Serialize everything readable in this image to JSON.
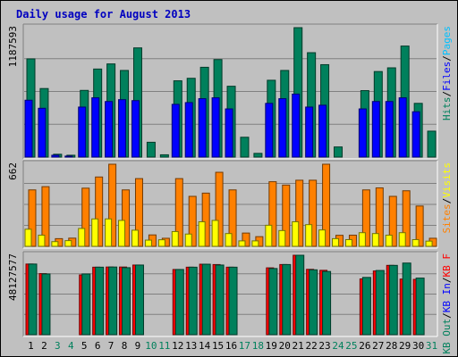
{
  "chart_data": {
    "type": "bar",
    "title": "Daily usage for August 2013",
    "categories": [
      "1",
      "2",
      "3",
      "4",
      "5",
      "6",
      "7",
      "8",
      "9",
      "10",
      "11",
      "12",
      "13",
      "14",
      "15",
      "16",
      "17",
      "18",
      "19",
      "20",
      "21",
      "22",
      "23",
      "24",
      "25",
      "26",
      "27",
      "28",
      "29",
      "30",
      "31"
    ],
    "weekend_days": [
      "3",
      "4",
      "10",
      "11",
      "17",
      "18",
      "24",
      "25",
      "31"
    ],
    "panels": [
      {
        "name": "hits-files-pages",
        "max_label": "1187593",
        "ymax": 1187593,
        "legend": [
          {
            "text": "Pages",
            "color": "#00c0ff"
          },
          {
            "text": "/",
            "color": "#000000"
          },
          {
            "text": "Files",
            "color": "#0000ff"
          },
          {
            "text": "/",
            "color": "#000000"
          },
          {
            "text": "Hits",
            "color": "#00805c"
          }
        ],
        "series": [
          {
            "name": "Hits",
            "color": "#00805c",
            "values": [
              901000,
              629000,
              26000,
              17000,
              612000,
              808000,
              855000,
              795000,
              1002000,
              136000,
              21000,
              700000,
              723000,
              824000,
              895000,
              650000,
              182000,
              34000,
              705000,
              795000,
              1187593,
              958000,
              848000,
              93000,
              0,
              610000,
              785000,
              819000,
              1019000,
              493000,
              238000
            ]
          },
          {
            "name": "Files",
            "color": "#0000ff",
            "values": [
              522000,
              448000,
              17000,
              9000,
              459000,
              544000,
              510000,
              527000,
              518000,
              0,
              0,
              484000,
              500000,
              536000,
              544000,
              442000,
              0,
              0,
              493000,
              536000,
              578000,
              459000,
              476000,
              0,
              0,
              442000,
              510000,
              510000,
              544000,
              416000,
              0
            ]
          },
          {
            "name": "Pages",
            "color": "#00c0ff",
            "values": [
              0,
              0,
              0,
              0,
              0,
              0,
              0,
              0,
              0,
              0,
              0,
              0,
              0,
              0,
              0,
              0,
              0,
              0,
              0,
              0,
              0,
              0,
              0,
              0,
              0,
              0,
              0,
              0,
              0,
              0,
              0
            ]
          }
        ]
      },
      {
        "name": "visits-sites",
        "max_label": "662",
        "ymax": 662,
        "legend": [
          {
            "text": "Visits",
            "color": "#ffff00"
          },
          {
            "text": "/",
            "color": "#000000"
          },
          {
            "text": "Sites",
            "color": "#ff8000"
          }
        ],
        "series": [
          {
            "name": "Sites",
            "color": "#ff8000",
            "values": [
              455,
              481,
              62,
              66,
              469,
              559,
              662,
              455,
              546,
              92,
              65,
              546,
              403,
              429,
              597,
              455,
              107,
              78,
              521,
              494,
              533,
              533,
              662,
              89,
              90,
              455,
              471,
              403,
              448,
              325,
              65
            ]
          },
          {
            "name": "Visits",
            "color": "#ffff00",
            "values": [
              138,
              90,
              38,
              46,
              144,
              221,
              221,
              209,
              130,
              50,
              53,
              119,
              99,
              198,
              209,
              103,
              44,
              44,
              170,
              127,
              198,
              175,
              132,
              62,
              54,
              110,
              103,
              90,
              110,
              54,
              42
            ]
          }
        ]
      },
      {
        "name": "kbytes",
        "max_label": "48127577",
        "ymax": 48127577,
        "legend": [
          {
            "text": "KB F",
            "color": "#ff0000"
          },
          {
            "text": "/",
            "color": "#000000"
          },
          {
            "text": "KB In",
            "color": "#0000ff"
          },
          {
            "text": "/",
            "color": "#000000"
          },
          {
            "text": "KB Out",
            "color": "#00805c"
          }
        ],
        "series": [
          {
            "name": "KB F",
            "color": "#ff0000",
            "values": [
              42800000,
              37000000,
              0,
              0,
              36200000,
              40900000,
              41000000,
              41000000,
              42200000,
              0,
              0,
              39500000,
              40900000,
              42700000,
              42500000,
              40900000,
              0,
              0,
              40500000,
              42500000,
              48127577,
              39600000,
              39000000,
              0,
              0,
              33800000,
              38600000,
              42000000,
              33700000,
              33500000,
              0
            ]
          },
          {
            "name": "KB Out",
            "color": "#00805c",
            "values": [
              42800000,
              36800000,
              0,
              0,
              36800000,
              40900000,
              41000000,
              40600000,
              42200000,
              0,
              0,
              39500000,
              40900000,
              42700000,
              42200000,
              40900000,
              0,
              0,
              40100000,
              42500000,
              48127577,
              39300000,
              38300000,
              0,
              0,
              34700000,
              38900000,
              42000000,
              43400000,
              34300000,
              0
            ]
          },
          {
            "name": "KB In",
            "color": "#0000ff",
            "values": [
              0,
              0,
              0,
              0,
              0,
              0,
              0,
              0,
              0,
              0,
              0,
              0,
              0,
              0,
              0,
              0,
              0,
              0,
              0,
              0,
              0,
              0,
              0,
              0,
              0,
              0,
              0,
              0,
              0,
              0,
              0
            ]
          }
        ]
      }
    ],
    "grid": true
  }
}
